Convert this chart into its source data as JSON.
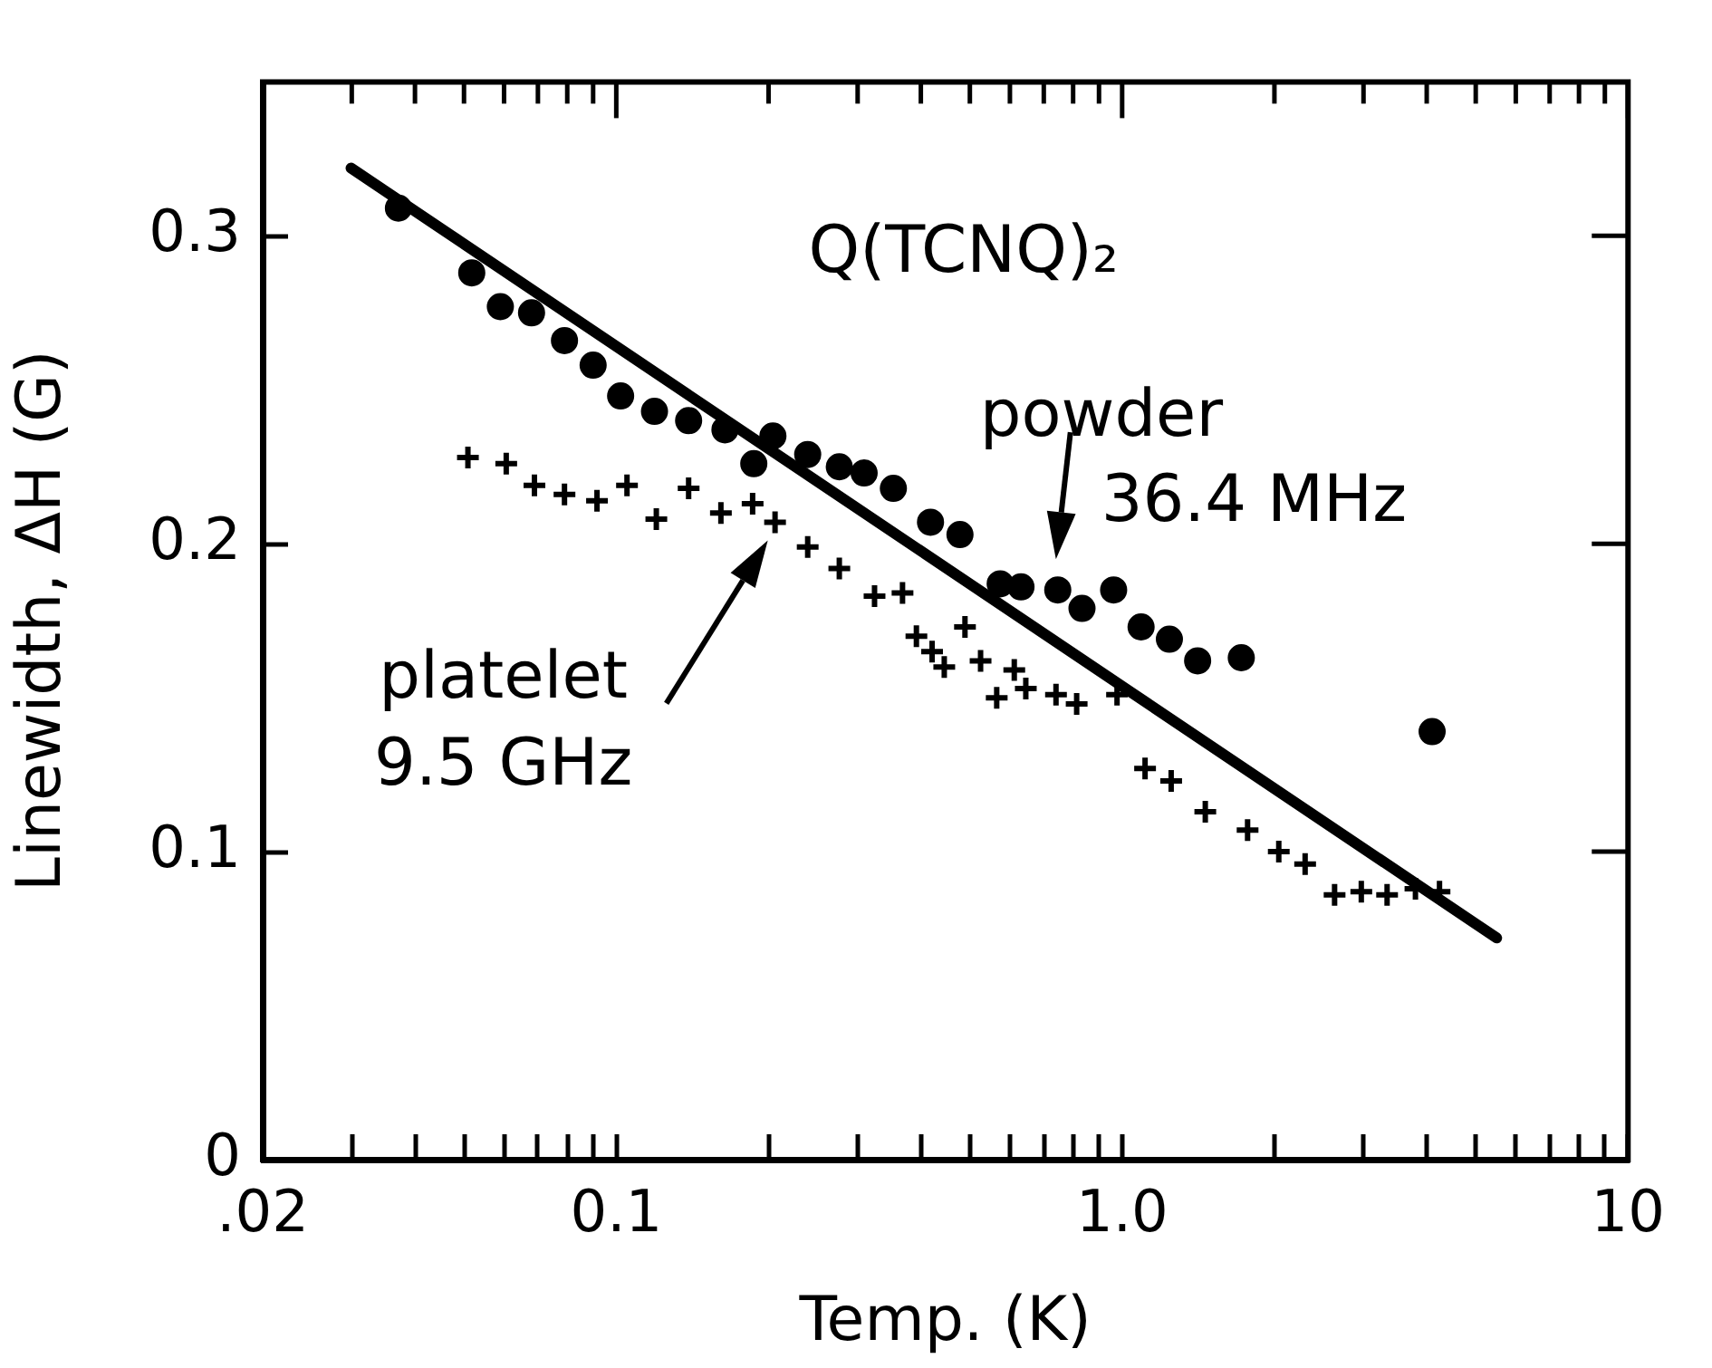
{
  "chart_data": {
    "type": "scatter",
    "title": "Q(TCNQ)₂",
    "xlabel": "Temp. (K)",
    "ylabel": "Linewidth, ΔH (G)",
    "log": "x",
    "xlim": [
      0.02,
      10
    ],
    "ylim": [
      0,
      0.35
    ],
    "xticks": [
      {
        "value": 0.02,
        "label": ".02"
      },
      {
        "value": 0.03,
        "label": null
      },
      {
        "value": 0.04,
        "label": null
      },
      {
        "value": 0.05,
        "label": null
      },
      {
        "value": 0.06,
        "label": null
      },
      {
        "value": 0.07,
        "label": null
      },
      {
        "value": 0.08,
        "label": null
      },
      {
        "value": 0.09,
        "label": null
      },
      0.1,
      {
        "value": 0.2,
        "label": null
      },
      {
        "value": 0.3,
        "label": null
      },
      {
        "value": 0.4,
        "label": null
      },
      {
        "value": 0.5,
        "label": null
      },
      {
        "value": 0.6,
        "label": null
      },
      {
        "value": 0.7,
        "label": null
      },
      {
        "value": 0.8,
        "label": null
      },
      {
        "value": 0.9,
        "label": null
      },
      {
        "value": 1,
        "label": "1.0"
      },
      {
        "value": 2,
        "label": null
      },
      {
        "value": 3,
        "label": null
      },
      {
        "value": 4,
        "label": null
      },
      {
        "value": 5,
        "label": null
      },
      {
        "value": 6,
        "label": null
      },
      {
        "value": 7,
        "label": null
      },
      {
        "value": 8,
        "label": null
      },
      {
        "value": 9,
        "label": null
      },
      10
    ],
    "yticks": [
      0,
      0.1,
      0.2,
      0.3
    ],
    "series": [
      {
        "type": "scatter",
        "marker": "circle",
        "color": "#000000",
        "x": [
          0.0371,
          0.0518,
          0.059,
          0.068,
          0.079,
          0.09,
          0.102,
          0.119,
          0.139,
          0.164,
          0.187,
          0.204,
          0.239,
          0.276,
          0.309,
          0.353,
          0.418,
          0.478,
          0.574,
          0.631,
          0.746,
          0.833,
          0.962,
          1.09,
          1.24,
          1.41,
          1.72,
          4.1
        ],
        "values": [
          0.309,
          0.288,
          0.277,
          0.275,
          0.266,
          0.258,
          0.248,
          0.243,
          0.24,
          0.237,
          0.226,
          0.235,
          0.229,
          0.225,
          0.223,
          0.218,
          0.207,
          0.203,
          0.187,
          0.186,
          0.185,
          0.179,
          0.185,
          0.173,
          0.169,
          0.162,
          0.163,
          0.139
        ]
      },
      {
        "type": "scatter",
        "marker": "cross",
        "color": "#000000",
        "x": [
          0.0509,
          0.0606,
          0.0689,
          0.079,
          0.0916,
          0.105,
          0.12,
          0.139,
          0.161,
          0.186,
          0.206,
          0.239,
          0.276,
          0.324,
          0.368,
          0.392,
          0.421,
          0.445,
          0.489,
          0.525,
          0.565,
          0.612,
          0.645,
          0.74,
          0.813,
          0.977,
          1.11,
          1.25,
          1.46,
          1.77,
          2.04,
          2.3,
          2.63,
          2.97,
          3.34,
          3.8,
          4.24
        ],
        "values": [
          0.228,
          0.226,
          0.219,
          0.216,
          0.214,
          0.219,
          0.208,
          0.218,
          0.21,
          0.213,
          0.207,
          0.199,
          0.192,
          0.183,
          0.184,
          0.17,
          0.165,
          0.16,
          0.173,
          0.162,
          0.15,
          0.159,
          0.153,
          0.151,
          0.148,
          0.151,
          0.127,
          0.123,
          0.113,
          0.107,
          0.1,
          0.096,
          0.086,
          0.087,
          0.086,
          0.088,
          0.087
        ]
      },
      {
        "type": "line",
        "marker": "none",
        "line_style": "solid",
        "color": "#000000",
        "x": [
          0.0299,
          5.5
        ],
        "values": [
          0.322,
          0.072
        ]
      }
    ],
    "annotations": [
      {
        "text": "powder 36.4 MHz",
        "x": 0.746,
        "y": 0.185
      },
      {
        "text": "platelet 9.5 GHz",
        "x": 0.206,
        "y": 0.207
      }
    ]
  }
}
